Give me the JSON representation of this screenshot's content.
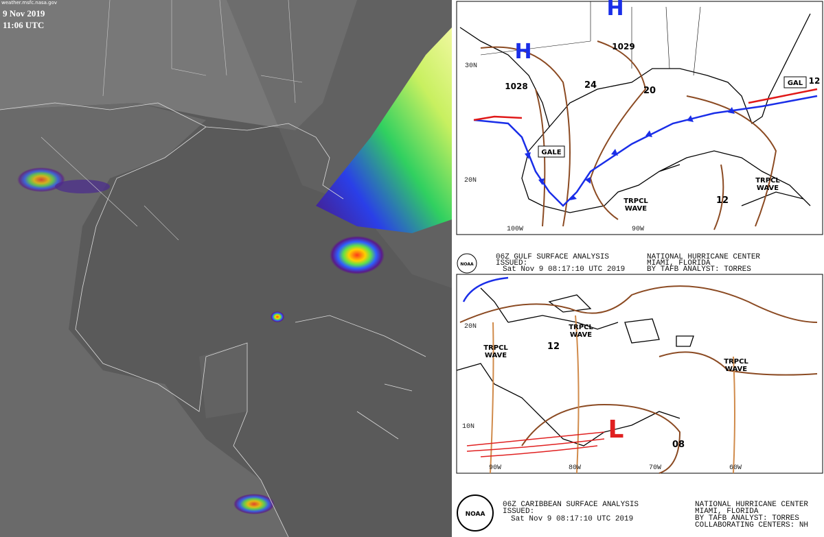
{
  "satellite": {
    "watermark": "weather.msfc.nasa.gov",
    "date": "9 Nov 2019",
    "time": "11:06 UTC"
  },
  "gulf_map": {
    "highs": [
      "H",
      "H"
    ],
    "pressures": [
      1029,
      1028,
      24,
      20,
      12,
      12
    ],
    "boxes": [
      "GALE",
      "GAL"
    ],
    "waves": [
      [
        "TRPCL",
        "WAVE"
      ],
      [
        "TRPCL",
        "WAVE"
      ]
    ],
    "grid_labels": [
      "30N",
      "20N",
      "100W",
      "90W"
    ],
    "header": {
      "title": "06Z GULF SURFACE ANALYSIS",
      "issued": "ISSUED:",
      "time": "Sat Nov 9 08:17:10 UTC 2019",
      "center": "NATIONAL HURRICANE CENTER",
      "city": "MIAMI, FLORIDA",
      "analyst": "BY TAFB ANALYST: TORRES"
    }
  },
  "caribbean_map": {
    "low": "L",
    "pressures": [
      12,
      8
    ],
    "pressure_labels": [
      "12",
      "08"
    ],
    "waves": [
      [
        "TRPCL",
        "WAVE"
      ],
      [
        "TRPCL",
        "WAVE"
      ],
      [
        "TRPCL",
        "WAVE"
      ]
    ],
    "grid_labels": [
      "20N",
      "10N",
      "90W",
      "80W",
      "70W",
      "60W"
    ],
    "footer": {
      "title": "06Z CARIBBEAN SURFACE ANALYSIS",
      "issued": "ISSUED:",
      "time": "Sat Nov 9 08:17:10 UTC 2019",
      "center": "NATIONAL HURRICANE CENTER",
      "city": "MIAMI, FLORIDA",
      "analyst": "BY TAFB ANALYST: TORRES",
      "collab": "COLLABORATING CENTERS: NH"
    }
  },
  "logo": "NOAA"
}
